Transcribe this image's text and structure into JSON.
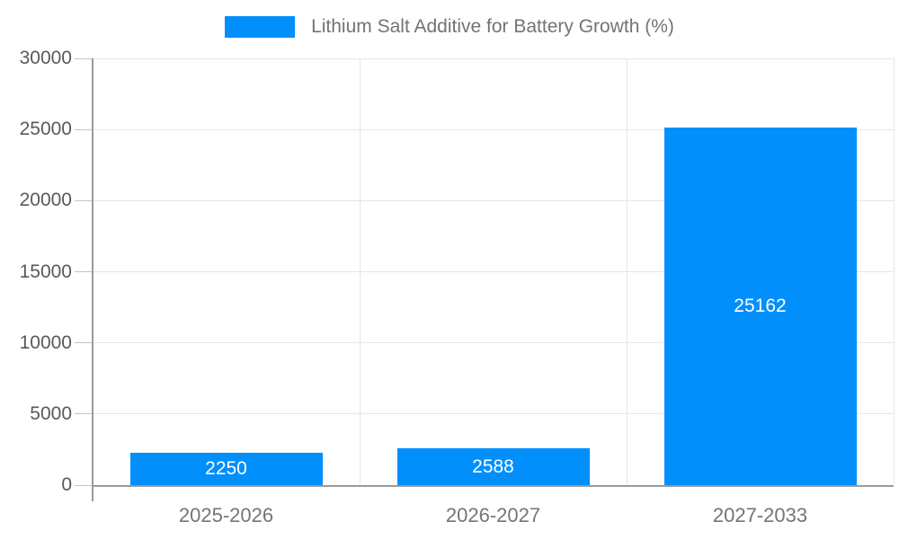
{
  "chart_data": {
    "type": "bar",
    "title": "Lithium Salt Additive for Battery Growth (%)",
    "legend": {
      "position": "top",
      "label": "Lithium Salt Additive for Battery Growth (%)"
    },
    "categories": [
      "2025-2026",
      "2026-2027",
      "2027-2033"
    ],
    "series": [
      {
        "name": "Lithium Salt Additive for Battery Growth (%)",
        "values": [
          2250,
          2588,
          25162
        ]
      }
    ],
    "value_labels": [
      "2250",
      "2588",
      "25162"
    ],
    "xlabel": "",
    "ylabel": "",
    "ylim": [
      0,
      30000
    ],
    "ytick_interval": 5000,
    "ytick_labels": [
      "0",
      "5000",
      "10000",
      "15000",
      "20000",
      "25000",
      "30000"
    ],
    "grid": true,
    "colors": {
      "bar": "#008FFB",
      "value_label": "#FFFFFF",
      "grid_line": "#E6E6E6",
      "tick_mark": "#C4C4C4",
      "axis_line": "#9A9A9A",
      "ytick_text": "#58595B",
      "xtick_text": "#757575",
      "legend_text": "#737373",
      "background": "#FFFFFF"
    }
  }
}
